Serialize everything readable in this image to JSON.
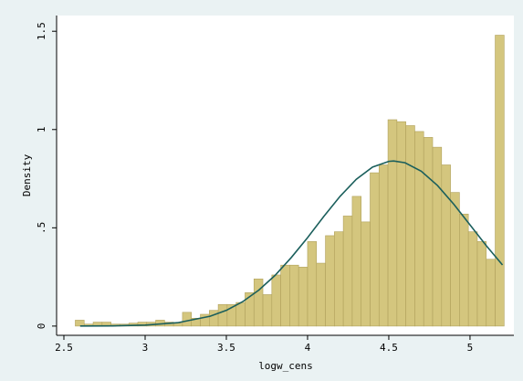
{
  "chart_data": {
    "type": "histogram",
    "bins": [
      2.57,
      2.625,
      2.68,
      2.735,
      2.79,
      2.845,
      2.9,
      2.955,
      3.01,
      3.065,
      3.12,
      3.175,
      3.23,
      3.285,
      3.34,
      3.395,
      3.45,
      3.505,
      3.56,
      3.615,
      3.67,
      3.725,
      3.78,
      3.835,
      3.89,
      3.945,
      4.0,
      4.055,
      4.11,
      4.165,
      4.22,
      4.275,
      4.33,
      4.385,
      4.44,
      4.495,
      4.55,
      4.605,
      4.66,
      4.715,
      4.77,
      4.825,
      4.88,
      4.935,
      4.99,
      5.045,
      5.1,
      5.155,
      5.21
    ],
    "values": [
      0.03,
      0.01,
      0.02,
      0.02,
      0.01,
      0.01,
      0.015,
      0.02,
      0.02,
      0.03,
      0.02,
      0.015,
      0.07,
      0.04,
      0.06,
      0.08,
      0.11,
      0.11,
      0.12,
      0.17,
      0.24,
      0.16,
      0.26,
      0.31,
      0.31,
      0.3,
      0.43,
      0.32,
      0.46,
      0.48,
      0.56,
      0.66,
      0.53,
      0.78,
      0.82,
      1.05,
      1.04,
      1.02,
      0.99,
      0.96,
      0.91,
      0.82,
      0.68,
      0.57,
      0.48,
      0.43,
      0.34,
      1.48
    ],
    "color": "#d4c67e",
    "edge_color": "#b0a15c",
    "curve": {
      "color": "#1b5f5c",
      "x": [
        2.6,
        2.8,
        3.0,
        3.2,
        3.4,
        3.5,
        3.6,
        3.7,
        3.8,
        3.9,
        4.0,
        4.1,
        4.2,
        4.3,
        4.4,
        4.5,
        4.53,
        4.6,
        4.7,
        4.8,
        4.9,
        5.0,
        5.1,
        5.2
      ],
      "values": [
        0.0002,
        0.001,
        0.005,
        0.017,
        0.05,
        0.08,
        0.124,
        0.183,
        0.258,
        0.349,
        0.45,
        0.558,
        0.66,
        0.747,
        0.809,
        0.838,
        0.84,
        0.831,
        0.788,
        0.715,
        0.62,
        0.515,
        0.409,
        0.311
      ]
    },
    "xlim": [
      2.455,
      5.27
    ],
    "ylim": [
      -0.047,
      1.58
    ],
    "xticks": [
      2.5,
      3,
      3.5,
      4,
      4.5,
      5
    ],
    "yticks": [
      0,
      {
        "value": 0.5,
        "label": ".5"
      },
      1,
      1.5
    ],
    "xlabel": "logw_cens",
    "ylabel": "Density",
    "grid": false
  }
}
